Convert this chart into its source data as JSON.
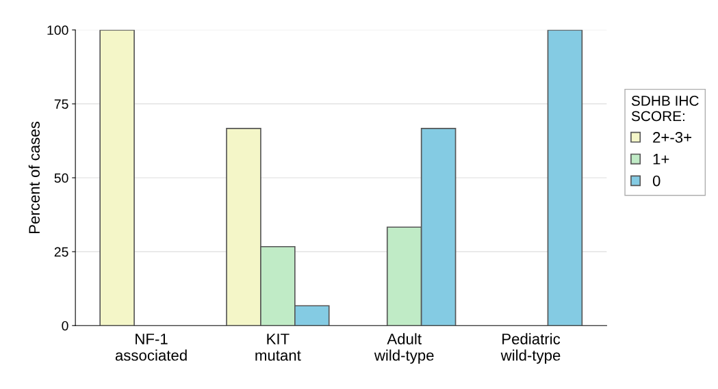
{
  "chart_data": {
    "type": "bar",
    "ylabel": "Percent of cases",
    "categories": [
      "NF-1\nassociated",
      "KIT\nmutant",
      "Adult\nwild-type",
      "Pediatric\nwild-type"
    ],
    "series": [
      {
        "name": "2+-3+",
        "color": "#f4f6c8",
        "values": [
          100,
          66.7,
          null,
          null
        ]
      },
      {
        "name": "1+",
        "color": "#c0ebc6",
        "values": [
          null,
          26.7,
          33.3,
          null
        ]
      },
      {
        "name": "0",
        "color": "#84cbe3",
        "values": [
          null,
          6.7,
          66.7,
          100
        ]
      }
    ],
    "ylim": [
      0,
      100
    ],
    "yticks": [
      0,
      25,
      50,
      75,
      100
    ],
    "grid": "y",
    "legend": "right",
    "legend_title": "SDHB IHC\nSCORE:"
  }
}
